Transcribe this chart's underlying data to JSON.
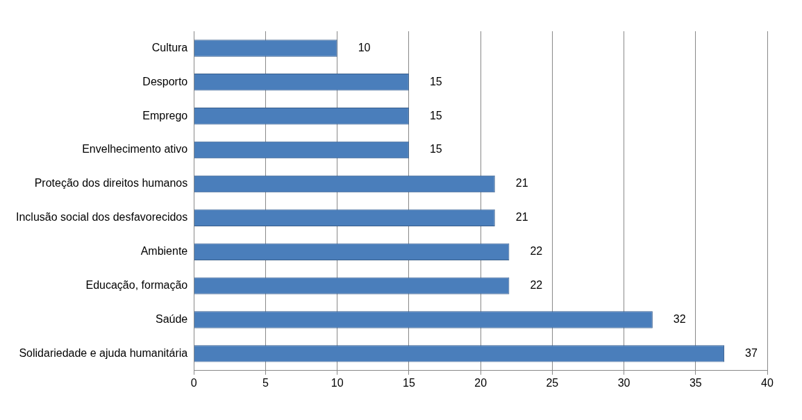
{
  "chart_data": {
    "type": "bar",
    "orientation": "horizontal",
    "categories": [
      "Cultura",
      "Desporto",
      "Emprego",
      "Envelhecimento ativo",
      "Proteção dos direitos humanos",
      "Inclusão social dos desfavorecidos",
      "Ambiente",
      "Educação, formação",
      "Saúde",
      "Solidariedade e ajuda humanitária"
    ],
    "values": [
      10,
      15,
      15,
      15,
      21,
      21,
      22,
      22,
      32,
      37
    ],
    "color": "#4a7ebb",
    "xlim": [
      0,
      40
    ],
    "xticks": [
      0,
      5,
      10,
      15,
      20,
      25,
      30,
      35,
      40
    ],
    "grid": "x",
    "data_labels": true,
    "legend": false
  }
}
